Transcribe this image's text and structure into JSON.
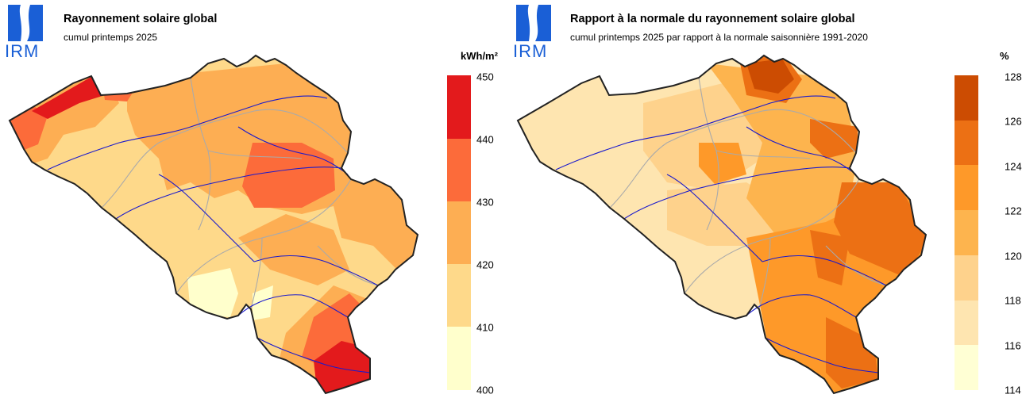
{
  "left_map": {
    "logo_text": "IRM",
    "title": "Rayonnement solaire global",
    "subtitle": "cumul printemps 2025",
    "unit": "kWh/m²",
    "legend": {
      "ticks": [
        "450",
        "440",
        "430",
        "420",
        "410",
        "400"
      ],
      "colors": [
        "#e31a1c",
        "#fc6b3a",
        "#fdae53",
        "#fed98a",
        "#ffffcc"
      ]
    }
  },
  "right_map": {
    "logo_text": "IRM",
    "title": "Rapport à la normale du rayonnement solaire global",
    "subtitle": "cumul printemps 2025 par rapport à la normale saisonnière 1991-2020",
    "unit": "%",
    "legend": {
      "ticks": [
        "128",
        "126",
        "124",
        "122",
        "120",
        "118",
        "116",
        "114"
      ],
      "colors": [
        "#cc4c02",
        "#ec7014",
        "#fe9929",
        "#fdb44e",
        "#fed28c",
        "#fee5b0",
        "#ffffd4"
      ]
    }
  },
  "colors": {
    "logo_blue": "#1a5fd6",
    "border": "#222222",
    "rivers": "#1a1acc",
    "provinces": "#aaaaaa"
  }
}
